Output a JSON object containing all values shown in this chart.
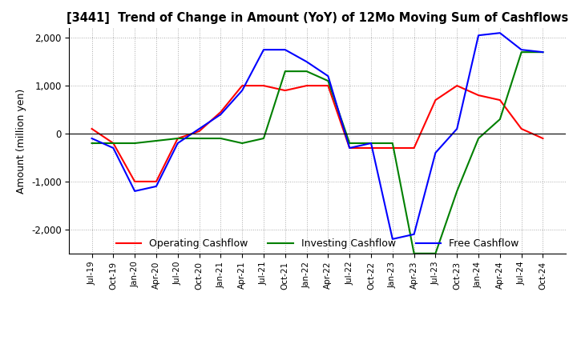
{
  "title": "[3441]  Trend of Change in Amount (YoY) of 12Mo Moving Sum of Cashflows",
  "ylabel": "Amount (million yen)",
  "ylim": [
    -2500,
    2200
  ],
  "yticks": [
    -2000,
    -1000,
    0,
    1000,
    2000
  ],
  "x_labels": [
    "Jul-19",
    "Oct-19",
    "Jan-20",
    "Apr-20",
    "Jul-20",
    "Oct-20",
    "Jan-21",
    "Apr-21",
    "Jul-21",
    "Oct-21",
    "Jan-22",
    "Apr-22",
    "Jul-22",
    "Oct-22",
    "Jan-23",
    "Apr-23",
    "Jul-23",
    "Oct-23",
    "Jan-24",
    "Apr-24",
    "Jul-24",
    "Oct-24"
  ],
  "operating": [
    100,
    -200,
    -1000,
    -1000,
    -100,
    50,
    450,
    1000,
    1000,
    900,
    1000,
    1000,
    -300,
    -300,
    -300,
    -300,
    700,
    1000,
    800,
    700,
    100,
    -100
  ],
  "investing": [
    -200,
    -200,
    -200,
    -150,
    -100,
    -100,
    -100,
    -200,
    -100,
    1300,
    1300,
    1100,
    -200,
    -200,
    -200,
    -2500,
    -2500,
    -1200,
    -100,
    300,
    1700,
    1700
  ],
  "free": [
    -100,
    -300,
    -1200,
    -1100,
    -200,
    100,
    400,
    900,
    1750,
    1750,
    1500,
    1200,
    -300,
    -200,
    -2200,
    -2100,
    -400,
    100,
    2050,
    2100,
    1750,
    1700
  ],
  "operating_color": "#ff0000",
  "investing_color": "#008000",
  "free_color": "#0000ff",
  "grid_color": "#aaaaaa",
  "background_color": "#ffffff"
}
